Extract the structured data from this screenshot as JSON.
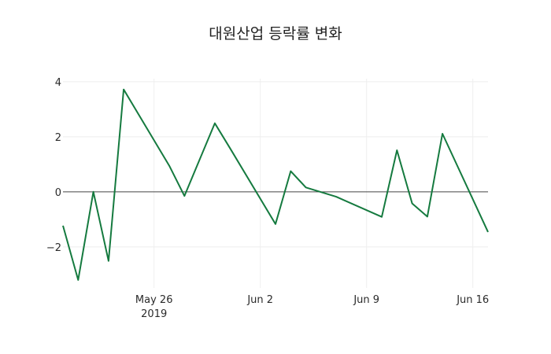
{
  "chart_data": {
    "type": "line",
    "title": "대원산업 등락률 변화",
    "xlabel": "",
    "ylabel": "",
    "x": [
      "2019-05-20",
      "2019-05-21",
      "2019-05-22",
      "2019-05-23",
      "2019-05-24",
      "2019-05-27",
      "2019-05-28",
      "2019-05-29",
      "2019-05-30",
      "2019-05-31",
      "2019-06-03",
      "2019-06-04",
      "2019-06-05",
      "2019-06-07",
      "2019-06-10",
      "2019-06-11",
      "2019-06-12",
      "2019-06-13",
      "2019-06-14",
      "2019-06-17"
    ],
    "series": [
      {
        "name": "등락률",
        "color": "#157a3f",
        "values": [
          -1.23,
          -3.2,
          0.0,
          -2.51,
          3.72,
          0.95,
          -0.15,
          1.17,
          2.49,
          1.59,
          -1.17,
          0.75,
          0.16,
          -0.18,
          -0.91,
          1.51,
          -0.42,
          -0.9,
          2.11,
          -1.46
        ]
      }
    ],
    "ylim": [
      -3.49,
      4.11
    ],
    "xlim": [
      "2019-05-20",
      "2019-06-17"
    ],
    "y_ticks": [
      -2,
      0,
      2,
      4
    ],
    "y_tick_labels": [
      "−2",
      "0",
      "2",
      "4"
    ],
    "x_ticks": [
      "2019-05-26",
      "2019-06-02",
      "2019-06-09",
      "2019-06-16"
    ],
    "x_tick_labels": [
      [
        "May 26",
        "2019"
      ],
      [
        "Jun 2"
      ],
      [
        "Jun 9"
      ],
      [
        "Jun 16"
      ]
    ],
    "grid": true,
    "zero_line": true,
    "legend": null
  },
  "colors": {
    "line": "#157a3f",
    "grid": "#eeeeee",
    "zero_line": "#444444",
    "text": "#2a2a2a"
  }
}
